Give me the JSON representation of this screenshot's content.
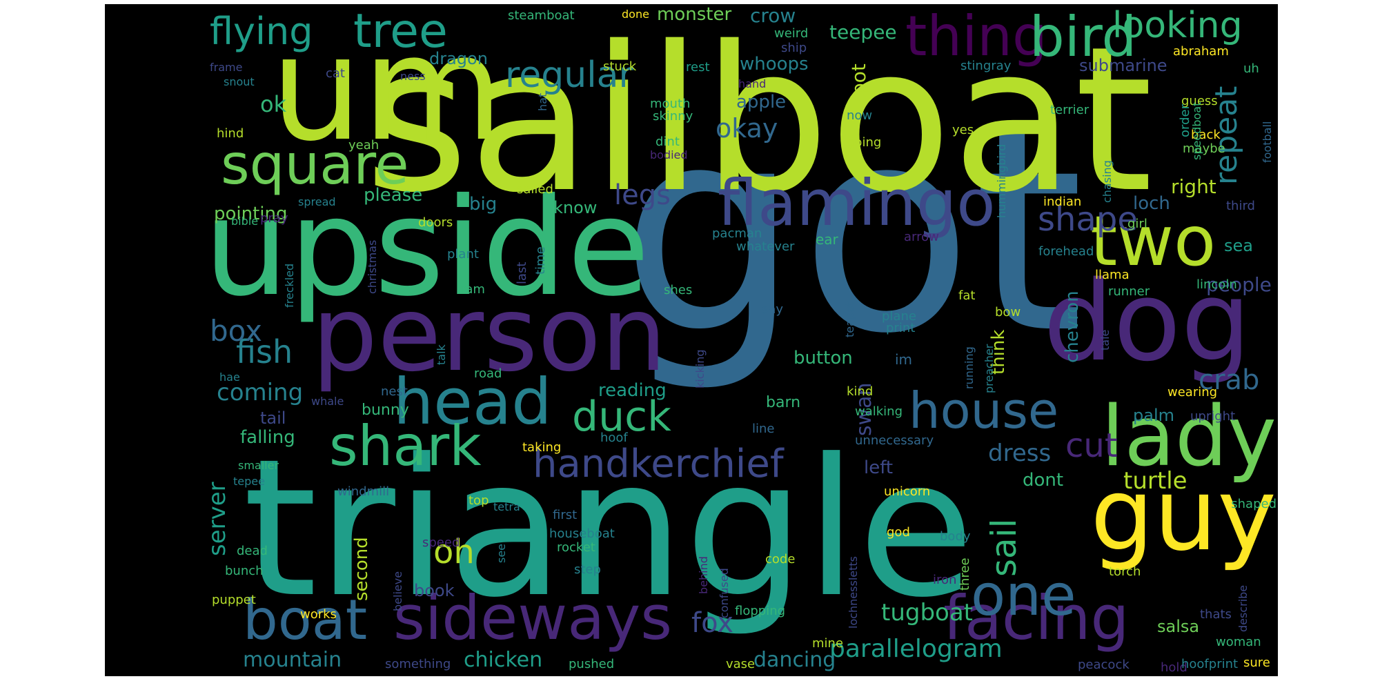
{
  "image_type": "word cloud",
  "palette": "viridis",
  "background_color": "#000000",
  "colors": {
    "lime": "#b5de2b",
    "yellow": "#fde725",
    "green": "#6ece58",
    "teal": "#1f9e89",
    "cyan": "#26828e",
    "blue": "#31688e",
    "indigo": "#3e4989",
    "purple": "#482878",
    "dark": "#440154"
  },
  "words": [
    {
      "text": "got",
      "color": "#31688e"
    },
    {
      "text": "sailboat",
      "color": "#b5de2b"
    },
    {
      "text": "triangle",
      "color": "#1f9e89"
    },
    {
      "text": "um",
      "color": "#b5de2b"
    },
    {
      "text": "upside",
      "color": "#35b779"
    },
    {
      "text": "dog",
      "color": "#482878"
    },
    {
      "text": "person",
      "color": "#482878"
    },
    {
      "text": "guy",
      "color": "#fde725"
    },
    {
      "text": "lady",
      "color": "#6ece58"
    },
    {
      "text": "two",
      "color": "#b5de2b"
    },
    {
      "text": "flamingo",
      "color": "#3e4989"
    },
    {
      "text": "thing",
      "color": "#440154"
    },
    {
      "text": "bird",
      "color": "#35b779"
    },
    {
      "text": "head",
      "color": "#26828e"
    },
    {
      "text": "square",
      "color": "#6ece58"
    },
    {
      "text": "shark",
      "color": "#35b779"
    },
    {
      "text": "sideways",
      "color": "#482878"
    },
    {
      "text": "facing",
      "color": "#482878"
    },
    {
      "text": "one",
      "color": "#31688e"
    },
    {
      "text": "house",
      "color": "#31688e"
    },
    {
      "text": "boat",
      "color": "#31688e"
    },
    {
      "text": "tree",
      "color": "#1f9e89"
    },
    {
      "text": "flying",
      "color": "#1f9e89"
    },
    {
      "text": "duck",
      "color": "#35b779"
    },
    {
      "text": "handkerchief",
      "color": "#3e4989"
    },
    {
      "text": "regular",
      "color": "#26828e"
    },
    {
      "text": "looking",
      "color": "#35b779"
    },
    {
      "text": "shape",
      "color": "#3e4989"
    },
    {
      "text": "cut",
      "color": "#482878"
    },
    {
      "text": "sail",
      "color": "#35b779"
    },
    {
      "text": "repeat",
      "color": "#26828e"
    },
    {
      "text": "fish",
      "color": "#26828e"
    },
    {
      "text": "box",
      "color": "#31688e"
    },
    {
      "text": "oh",
      "color": "#b5de2b"
    },
    {
      "text": "legs",
      "color": "#3e4989"
    },
    {
      "text": "okay",
      "color": "#31688e"
    },
    {
      "text": "crab",
      "color": "#31688e"
    },
    {
      "text": "fox",
      "color": "#3e4989"
    },
    {
      "text": "tugboat",
      "color": "#35b779"
    },
    {
      "text": "parallelogram",
      "color": "#1f9e89"
    },
    {
      "text": "coming",
      "color": "#26828e"
    },
    {
      "text": "dress",
      "color": "#31688e"
    },
    {
      "text": "turtle",
      "color": "#b5de2b"
    },
    {
      "text": "mountain",
      "color": "#26828e"
    },
    {
      "text": "dancing",
      "color": "#26828e"
    },
    {
      "text": "chicken",
      "color": "#1f9e89"
    },
    {
      "text": "server",
      "color": "#1f9e89"
    },
    {
      "text": "ok",
      "color": "#35b779"
    },
    {
      "text": "pot",
      "color": "#b5de2b"
    },
    {
      "text": "crow",
      "color": "#26828e"
    },
    {
      "text": "teepee",
      "color": "#35b779"
    },
    {
      "text": "monster",
      "color": "#6ece58"
    },
    {
      "text": "dragon",
      "color": "#26828e"
    },
    {
      "text": "whoops",
      "color": "#26828e"
    },
    {
      "text": "apple",
      "color": "#31688e"
    },
    {
      "text": "submarine",
      "color": "#3e4989"
    },
    {
      "text": "falling",
      "color": "#35b779"
    },
    {
      "text": "reading",
      "color": "#1f9e89"
    },
    {
      "text": "button",
      "color": "#35b779"
    },
    {
      "text": "swan",
      "color": "#3e4989"
    },
    {
      "text": "left",
      "color": "#3e4989"
    },
    {
      "text": "loch",
      "color": "#31688e"
    },
    {
      "text": "right",
      "color": "#b5de2b"
    },
    {
      "text": "sea",
      "color": "#1f9e89"
    },
    {
      "text": "chevron",
      "color": "#26828e"
    },
    {
      "text": "think",
      "color": "#b5de2b"
    },
    {
      "text": "people",
      "color": "#3e4989"
    },
    {
      "text": "palm",
      "color": "#26828e"
    },
    {
      "text": "dont",
      "color": "#35b779"
    },
    {
      "text": "salsa",
      "color": "#6ece58"
    },
    {
      "text": "second",
      "color": "#b5de2b"
    },
    {
      "text": "book",
      "color": "#3e4989"
    },
    {
      "text": "big",
      "color": "#26828e"
    },
    {
      "text": "please",
      "color": "#35b779"
    },
    {
      "text": "pointing",
      "color": "#6ece58"
    },
    {
      "text": "know",
      "color": "#35b779"
    },
    {
      "text": "bunny",
      "color": "#35b779"
    },
    {
      "text": "barn",
      "color": "#35b779"
    },
    {
      "text": "tail",
      "color": "#3e4989"
    },
    {
      "text": "steamboat",
      "color": "#35b779"
    },
    {
      "text": "done",
      "color": "#fde725"
    },
    {
      "text": "weird",
      "color": "#35b779"
    },
    {
      "text": "ness",
      "color": "#3e4989"
    },
    {
      "text": "ship",
      "color": "#3e4989"
    },
    {
      "text": "stuck",
      "color": "#b5de2b"
    },
    {
      "text": "rest",
      "color": "#1f9e89"
    },
    {
      "text": "stingray",
      "color": "#26828e"
    },
    {
      "text": "abraham",
      "color": "#fde725"
    },
    {
      "text": "uh",
      "color": "#35b779"
    },
    {
      "text": "frame",
      "color": "#3e4989"
    },
    {
      "text": "snout",
      "color": "#26828e"
    },
    {
      "text": "cat",
      "color": "#3e4989"
    },
    {
      "text": "mouth",
      "color": "#35b779"
    },
    {
      "text": "hand",
      "color": "#482878"
    },
    {
      "text": "skinny",
      "color": "#35b779"
    },
    {
      "text": "hat",
      "color": "#31688e"
    },
    {
      "text": "now",
      "color": "#26828e"
    },
    {
      "text": "terrier",
      "color": "#35b779"
    },
    {
      "text": "hummingbird",
      "color": "#26828e"
    },
    {
      "text": "guess",
      "color": "#b5de2b"
    },
    {
      "text": "back",
      "color": "#fde725"
    },
    {
      "text": "maybe",
      "color": "#6ece58"
    },
    {
      "text": "order",
      "color": "#1f9e89"
    },
    {
      "text": "football",
      "color": "#31688e"
    },
    {
      "text": "speedboat",
      "color": "#35b779"
    },
    {
      "text": "hind",
      "color": "#b5de2b"
    },
    {
      "text": "yeah",
      "color": "#6ece58"
    },
    {
      "text": "dint",
      "color": "#35b779"
    },
    {
      "text": "bodied",
      "color": "#482878"
    },
    {
      "text": "going",
      "color": "#b5de2b"
    },
    {
      "text": "yes",
      "color": "#b5de2b"
    },
    {
      "text": "chasing",
      "color": "#26828e"
    },
    {
      "text": "bible",
      "color": "#35b779"
    },
    {
      "text": "spread",
      "color": "#26828e"
    },
    {
      "text": "sailed",
      "color": "#b5de2b"
    },
    {
      "text": "indian",
      "color": "#fde725"
    },
    {
      "text": "girl",
      "color": "#6ece58"
    },
    {
      "text": "third",
      "color": "#3e4989"
    },
    {
      "text": "pray",
      "color": "#482878"
    },
    {
      "text": "christmas",
      "color": "#3e4989"
    },
    {
      "text": "doors",
      "color": "#b5de2b"
    },
    {
      "text": "pacman",
      "color": "#26828e"
    },
    {
      "text": "whatever",
      "color": "#26828e"
    },
    {
      "text": "arrow",
      "color": "#482878"
    },
    {
      "text": "forehead",
      "color": "#26828e"
    },
    {
      "text": "ear",
      "color": "#35b779"
    },
    {
      "text": "plant",
      "color": "#26828e"
    },
    {
      "text": "last",
      "color": "#3e4989"
    },
    {
      "text": "time",
      "color": "#26828e"
    },
    {
      "text": "freckled",
      "color": "#26828e"
    },
    {
      "text": "ram",
      "color": "#35b779"
    },
    {
      "text": "fat",
      "color": "#b5de2b"
    },
    {
      "text": "llama",
      "color": "#fde725"
    },
    {
      "text": "lincoln",
      "color": "#35b779"
    },
    {
      "text": "runner",
      "color": "#35b779"
    },
    {
      "text": "shes",
      "color": "#35b779"
    },
    {
      "text": "say",
      "color": "#31688e"
    },
    {
      "text": "teapot",
      "color": "#31688e"
    },
    {
      "text": "bow",
      "color": "#b5de2b"
    },
    {
      "text": "plane",
      "color": "#26828e"
    },
    {
      "text": "print",
      "color": "#26828e"
    },
    {
      "text": "im",
      "color": "#31688e"
    },
    {
      "text": "tale",
      "color": "#3e4989"
    },
    {
      "text": "hae",
      "color": "#26828e"
    },
    {
      "text": "talk",
      "color": "#26828e"
    },
    {
      "text": "road",
      "color": "#35b779"
    },
    {
      "text": "kicking",
      "color": "#3e4989"
    },
    {
      "text": "running",
      "color": "#31688e"
    },
    {
      "text": "preacher",
      "color": "#26828e"
    },
    {
      "text": "nest",
      "color": "#31688e"
    },
    {
      "text": "whale",
      "color": "#3e4989"
    },
    {
      "text": "kind",
      "color": "#b5de2b"
    },
    {
      "text": "walking",
      "color": "#35b779"
    },
    {
      "text": "wearing",
      "color": "#fde725"
    },
    {
      "text": "upright",
      "color": "#3e4989"
    },
    {
      "text": "line",
      "color": "#31688e"
    },
    {
      "text": "hoof",
      "color": "#26828e"
    },
    {
      "text": "unnecessary",
      "color": "#31688e"
    },
    {
      "text": "taking",
      "color": "#fde725"
    },
    {
      "text": "smaller",
      "color": "#35b779"
    },
    {
      "text": "tepee",
      "color": "#26828e"
    },
    {
      "text": "windmill",
      "color": "#31688e"
    },
    {
      "text": "top",
      "color": "#b5de2b"
    },
    {
      "text": "tetra",
      "color": "#26828e"
    },
    {
      "text": "unicorn",
      "color": "#fde725"
    },
    {
      "text": "first",
      "color": "#31688e"
    },
    {
      "text": "shaped",
      "color": "#35b779"
    },
    {
      "text": "confused",
      "color": "#3e4989"
    },
    {
      "text": "dead",
      "color": "#35b779"
    },
    {
      "text": "speed",
      "color": "#482878"
    },
    {
      "text": "see",
      "color": "#26828e"
    },
    {
      "text": "houseboat",
      "color": "#26828e"
    },
    {
      "text": "behind",
      "color": "#482878"
    },
    {
      "text": "lochnessletts",
      "color": "#3e4989"
    },
    {
      "text": "god",
      "color": "#fde725"
    },
    {
      "text": "body",
      "color": "#26828e"
    },
    {
      "text": "three",
      "color": "#6ece58"
    },
    {
      "text": "bunch",
      "color": "#35b779"
    },
    {
      "text": "believe",
      "color": "#3e4989"
    },
    {
      "text": "rocket",
      "color": "#35b779"
    },
    {
      "text": "code",
      "color": "#b5de2b"
    },
    {
      "text": "iron",
      "color": "#482878"
    },
    {
      "text": "torch",
      "color": "#b5de2b"
    },
    {
      "text": "step",
      "color": "#26828e"
    },
    {
      "text": "describe",
      "color": "#3e4989"
    },
    {
      "text": "puppet",
      "color": "#b5de2b"
    },
    {
      "text": "works",
      "color": "#fde725"
    },
    {
      "text": "flopping",
      "color": "#35b779"
    },
    {
      "text": "thats",
      "color": "#3e4989"
    },
    {
      "text": "mine",
      "color": "#b5de2b"
    },
    {
      "text": "woman",
      "color": "#35b779"
    },
    {
      "text": "something",
      "color": "#3e4989"
    },
    {
      "text": "pushed",
      "color": "#35b779"
    },
    {
      "text": "vase",
      "color": "#b5de2b"
    },
    {
      "text": "peacock",
      "color": "#3e4989"
    },
    {
      "text": "hold",
      "color": "#482878"
    },
    {
      "text": "hoofprint",
      "color": "#26828e"
    },
    {
      "text": "sure",
      "color": "#fde725"
    }
  ]
}
